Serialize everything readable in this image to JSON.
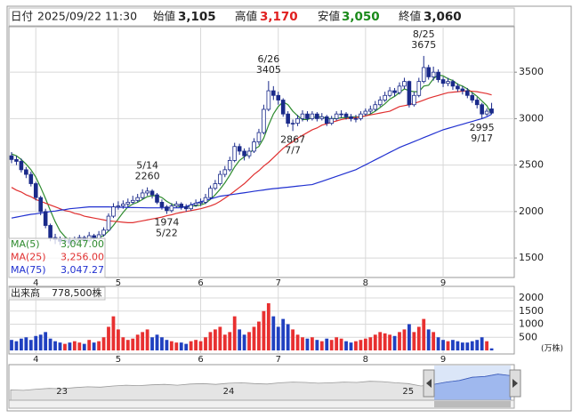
{
  "chart_data": {
    "type": "candlestick",
    "header": {
      "date_label": "日付",
      "date": "2025/09/22 11:30",
      "open_label": "始値",
      "open": "3,105",
      "high_label": "高値",
      "high": "3,170",
      "low_label": "安値",
      "low": "3,050",
      "close_label": "終値",
      "close": "3,060"
    },
    "open": [
      2600,
      2560,
      2540,
      2450,
      2400,
      2300,
      2150,
      2000,
      1850,
      1720,
      1700,
      1680,
      1690,
      1660,
      1700,
      1720,
      1690,
      1740,
      1710,
      1750,
      1800,
      1950,
      2050,
      2060,
      2080,
      2100,
      2120,
      2150,
      2200,
      2220,
      2180,
      2100,
      2050,
      2010,
      2060,
      2080,
      2050,
      2030,
      2070,
      2090,
      2100,
      2150,
      2250,
      2300,
      2400,
      2450,
      2550,
      2700,
      2650,
      2600,
      2650,
      2750,
      2850,
      3100,
      3300,
      3250,
      3200,
      3050,
      2950,
      2950,
      3000,
      3050,
      3000,
      3050,
      3000,
      3020,
      2950,
      3000,
      3050,
      3050,
      3020,
      3000,
      3000,
      3050,
      3080,
      3100,
      3150,
      3200,
      3250,
      3300,
      3280,
      3350,
      3400,
      3150,
      3250,
      3400,
      3550,
      3450,
      3500,
      3420,
      3380,
      3400,
      3350,
      3320,
      3300,
      3250,
      3200,
      3150,
      3050,
      3105
    ],
    "high": [
      2640,
      2600,
      2570,
      2480,
      2430,
      2320,
      2170,
      2030,
      1870,
      1760,
      1730,
      1720,
      1720,
      1730,
      1750,
      1740,
      1780,
      1760,
      1790,
      1830,
      1980,
      2090,
      2110,
      2120,
      2140,
      2170,
      2190,
      2240,
      2260,
      2240,
      2200,
      2130,
      2070,
      2090,
      2110,
      2100,
      2080,
      2100,
      2130,
      2140,
      2190,
      2280,
      2340,
      2440,
      2490,
      2590,
      2740,
      2730,
      2680,
      2690,
      2790,
      2890,
      3150,
      3405,
      3350,
      3290,
      3220,
      3080,
      2990,
      3040,
      3090,
      3080,
      3080,
      3070,
      3060,
      3040,
      3030,
      3080,
      3090,
      3070,
      3050,
      3040,
      3080,
      3110,
      3140,
      3190,
      3240,
      3290,
      3340,
      3330,
      3390,
      3440,
      3410,
      3290,
      3440,
      3675,
      3580,
      3560,
      3530,
      3450,
      3440,
      3420,
      3380,
      3350,
      3330,
      3280,
      3230,
      3170,
      3110,
      3170
    ],
    "low": [
      2520,
      2500,
      2420,
      2360,
      2270,
      2120,
      1960,
      1820,
      1680,
      1650,
      1640,
      1650,
      1630,
      1640,
      1680,
      1660,
      1670,
      1690,
      1700,
      1730,
      1790,
      1930,
      2020,
      2030,
      2050,
      2080,
      2100,
      2130,
      2170,
      2140,
      2080,
      2020,
      1974,
      1990,
      2040,
      2020,
      2000,
      2010,
      2050,
      2060,
      2080,
      2130,
      2230,
      2280,
      2370,
      2430,
      2530,
      2610,
      2550,
      2570,
      2630,
      2720,
      2830,
      3080,
      3200,
      3150,
      3020,
      2910,
      2867,
      2920,
      2970,
      2970,
      2980,
      2970,
      2980,
      2920,
      2930,
      2980,
      3010,
      2990,
      2970,
      2960,
      2980,
      3030,
      3050,
      3080,
      3130,
      3180,
      3230,
      3240,
      3260,
      3320,
      3120,
      3130,
      3230,
      3380,
      3420,
      3410,
      3390,
      3340,
      3350,
      3310,
      3290,
      3260,
      3220,
      3170,
      3110,
      2995,
      3030,
      3050
    ],
    "close": [
      2560,
      2540,
      2450,
      2400,
      2300,
      2150,
      2000,
      1850,
      1720,
      1700,
      1680,
      1690,
      1660,
      1700,
      1720,
      1690,
      1740,
      1710,
      1750,
      1800,
      1950,
      2050,
      2060,
      2080,
      2100,
      2120,
      2150,
      2200,
      2220,
      2180,
      2100,
      2050,
      2010,
      2060,
      2080,
      2050,
      2030,
      2070,
      2090,
      2100,
      2150,
      2250,
      2300,
      2400,
      2450,
      2550,
      2700,
      2650,
      2600,
      2650,
      2750,
      2850,
      3100,
      3300,
      3250,
      3200,
      3050,
      2950,
      2950,
      3000,
      3050,
      3000,
      3050,
      3000,
      3020,
      2950,
      3000,
      3050,
      3050,
      3020,
      3000,
      3000,
      3050,
      3080,
      3100,
      3150,
      3200,
      3250,
      3300,
      3280,
      3350,
      3400,
      3150,
      3250,
      3400,
      3550,
      3450,
      3500,
      3420,
      3380,
      3400,
      3350,
      3320,
      3300,
      3250,
      3200,
      3150,
      3050,
      3080,
      3060
    ],
    "up_color": "#ffffff",
    "down_color": "#1a2a8a",
    "edge_color": "#1a2a8a",
    "series": [
      {
        "name": "MA(5)",
        "color": "#2e8b2e",
        "last_label": "3,047.00",
        "values": [
          2620,
          2600,
          2560,
          2510,
          2450,
          2370,
          2260,
          2140,
          2010,
          1890,
          1790,
          1730,
          1690,
          1690,
          1690,
          1700,
          1710,
          1710,
          1720,
          1740,
          1790,
          1850,
          1920,
          1990,
          2050,
          2080,
          2100,
          2130,
          2160,
          2170,
          2170,
          2150,
          2110,
          2080,
          2060,
          2050,
          2050,
          2060,
          2060,
          2070,
          2090,
          2130,
          2180,
          2240,
          2310,
          2390,
          2480,
          2550,
          2590,
          2630,
          2670,
          2700,
          2790,
          2930,
          3050,
          3130,
          3180,
          3150,
          3080,
          3030,
          2990,
          2990,
          3010,
          3020,
          3020,
          3000,
          3000,
          3000,
          3010,
          3010,
          3020,
          3020,
          3020,
          3030,
          3050,
          3080,
          3120,
          3160,
          3210,
          3240,
          3280,
          3320,
          3300,
          3290,
          3290,
          3350,
          3360,
          3430,
          3470,
          3460,
          3430,
          3410,
          3370,
          3350,
          3320,
          3280,
          3240,
          3190,
          3140,
          3047
        ]
      },
      {
        "name": "MA(25)",
        "color": "#e03030",
        "last_label": "3,256.00",
        "values": [
          2260,
          2230,
          2210,
          2180,
          2160,
          2130,
          2110,
          2090,
          2070,
          2050,
          2030,
          2010,
          2000,
          1980,
          1970,
          1950,
          1940,
          1930,
          1920,
          1910,
          1900,
          1895,
          1890,
          1885,
          1880,
          1880,
          1890,
          1900,
          1910,
          1920,
          1930,
          1940,
          1955,
          1965,
          1980,
          1990,
          2000,
          2010,
          2020,
          2030,
          2045,
          2060,
          2080,
          2110,
          2145,
          2180,
          2220,
          2260,
          2300,
          2350,
          2400,
          2440,
          2490,
          2530,
          2580,
          2630,
          2680,
          2720,
          2750,
          2790,
          2820,
          2850,
          2880,
          2900,
          2930,
          2945,
          2960,
          2975,
          2990,
          3000,
          3005,
          3010,
          3020,
          3030,
          3040,
          3050,
          3060,
          3070,
          3080,
          3105,
          3130,
          3140,
          3150,
          3165,
          3180,
          3200,
          3220,
          3235,
          3250,
          3265,
          3280,
          3285,
          3290,
          3295,
          3300,
          3295,
          3290,
          3280,
          3270,
          3256
        ]
      },
      {
        "name": "MA(75)",
        "color": "#2030d0",
        "last_label": "3,047.27",
        "values": [
          1930,
          1940,
          1950,
          1960,
          1970,
          1975,
          1985,
          1990,
          2000,
          2005,
          2015,
          2020,
          2030,
          2035,
          2040,
          2045,
          2050,
          2050,
          2050,
          2050,
          2050,
          2048,
          2046,
          2045,
          2044,
          2043,
          2042,
          2041,
          2040,
          2040,
          2040,
          2040,
          2040,
          2040,
          2040,
          2040,
          2055,
          2070,
          2090,
          2105,
          2120,
          2135,
          2150,
          2165,
          2172,
          2180,
          2187,
          2195,
          2202,
          2210,
          2218,
          2225,
          2232,
          2240,
          2246,
          2251,
          2257,
          2262,
          2268,
          2274,
          2279,
          2285,
          2290,
          2308,
          2325,
          2343,
          2361,
          2379,
          2396,
          2414,
          2432,
          2450,
          2477,
          2503,
          2530,
          2557,
          2583,
          2610,
          2637,
          2663,
          2690,
          2711,
          2732,
          2753,
          2774,
          2796,
          2817,
          2838,
          2859,
          2880,
          2895,
          2910,
          2925,
          2940,
          2955,
          2970,
          2985,
          3000,
          3020,
          3047.27
        ]
      }
    ],
    "annotations": [
      {
        "date": "5/14",
        "value": 2260
      },
      {
        "date": "5/22",
        "value": 1974
      },
      {
        "date": "6/26",
        "value": 3405
      },
      {
        "date": "7/7",
        "value": 2867
      },
      {
        "date": "8/25",
        "value": 3675
      },
      {
        "date": "9/17",
        "value": 2995
      }
    ],
    "ylim": [
      1290,
      3990
    ],
    "yticks": [
      1500,
      2000,
      2500,
      3000,
      3500
    ],
    "xticks": [
      {
        "value": 5,
        "label": "4"
      },
      {
        "value": 22,
        "label": "5"
      },
      {
        "value": 39,
        "label": "6"
      },
      {
        "value": 55,
        "label": "7"
      },
      {
        "value": 73,
        "label": "8"
      },
      {
        "value": 89,
        "label": "9"
      }
    ],
    "grid": true,
    "volume": {
      "label": "出来高",
      "last": "778,500株",
      "unit": "(万株)",
      "up_color": "#e83030",
      "down_color": "#2040c0",
      "ylim": [
        0,
        2340
      ],
      "yticks": [
        500,
        1000,
        1500,
        2000
      ],
      "values": [
        400,
        350,
        450,
        500,
        400,
        550,
        600,
        700,
        450,
        350,
        300,
        250,
        300,
        350,
        300,
        250,
        400,
        300,
        350,
        500,
        900,
        1300,
        800,
        500,
        400,
        450,
        600,
        700,
        800,
        500,
        600,
        500,
        400,
        350,
        300,
        300,
        250,
        350,
        400,
        350,
        500,
        700,
        800,
        900,
        600,
        700,
        1300,
        800,
        600,
        700,
        900,
        1100,
        1500,
        1800,
        1300,
        900,
        1200,
        1000,
        800,
        600,
        500,
        450,
        500,
        400,
        350,
        450,
        400,
        500,
        450,
        350,
        300,
        350,
        400,
        450,
        500,
        600,
        700,
        650,
        600,
        550,
        700,
        800,
        1000,
        700,
        900,
        1200,
        800,
        700,
        500,
        400,
        350,
        400,
        350,
        300,
        300,
        350,
        400,
        500,
        350,
        77.85
      ]
    },
    "navigator": {
      "ylim": [
        0,
        4500
      ],
      "values": [
        1300,
        1250,
        1400,
        1500,
        1450,
        1600,
        1700,
        1650,
        1800,
        1900,
        1850,
        1950,
        2000,
        1900,
        2050,
        2100,
        2000,
        2150,
        2200,
        2100,
        2050,
        2200,
        2300,
        2250,
        2150,
        2200,
        2300,
        2250,
        2400,
        2350,
        2200,
        2100,
        1800,
        2000,
        2300,
        2500,
        2900,
        3000,
        3300,
        3100
      ],
      "xticks": [
        {
          "value": 4,
          "label": "23"
        },
        {
          "value": 17,
          "label": "24"
        },
        {
          "value": 31,
          "label": "25"
        }
      ]
    }
  }
}
